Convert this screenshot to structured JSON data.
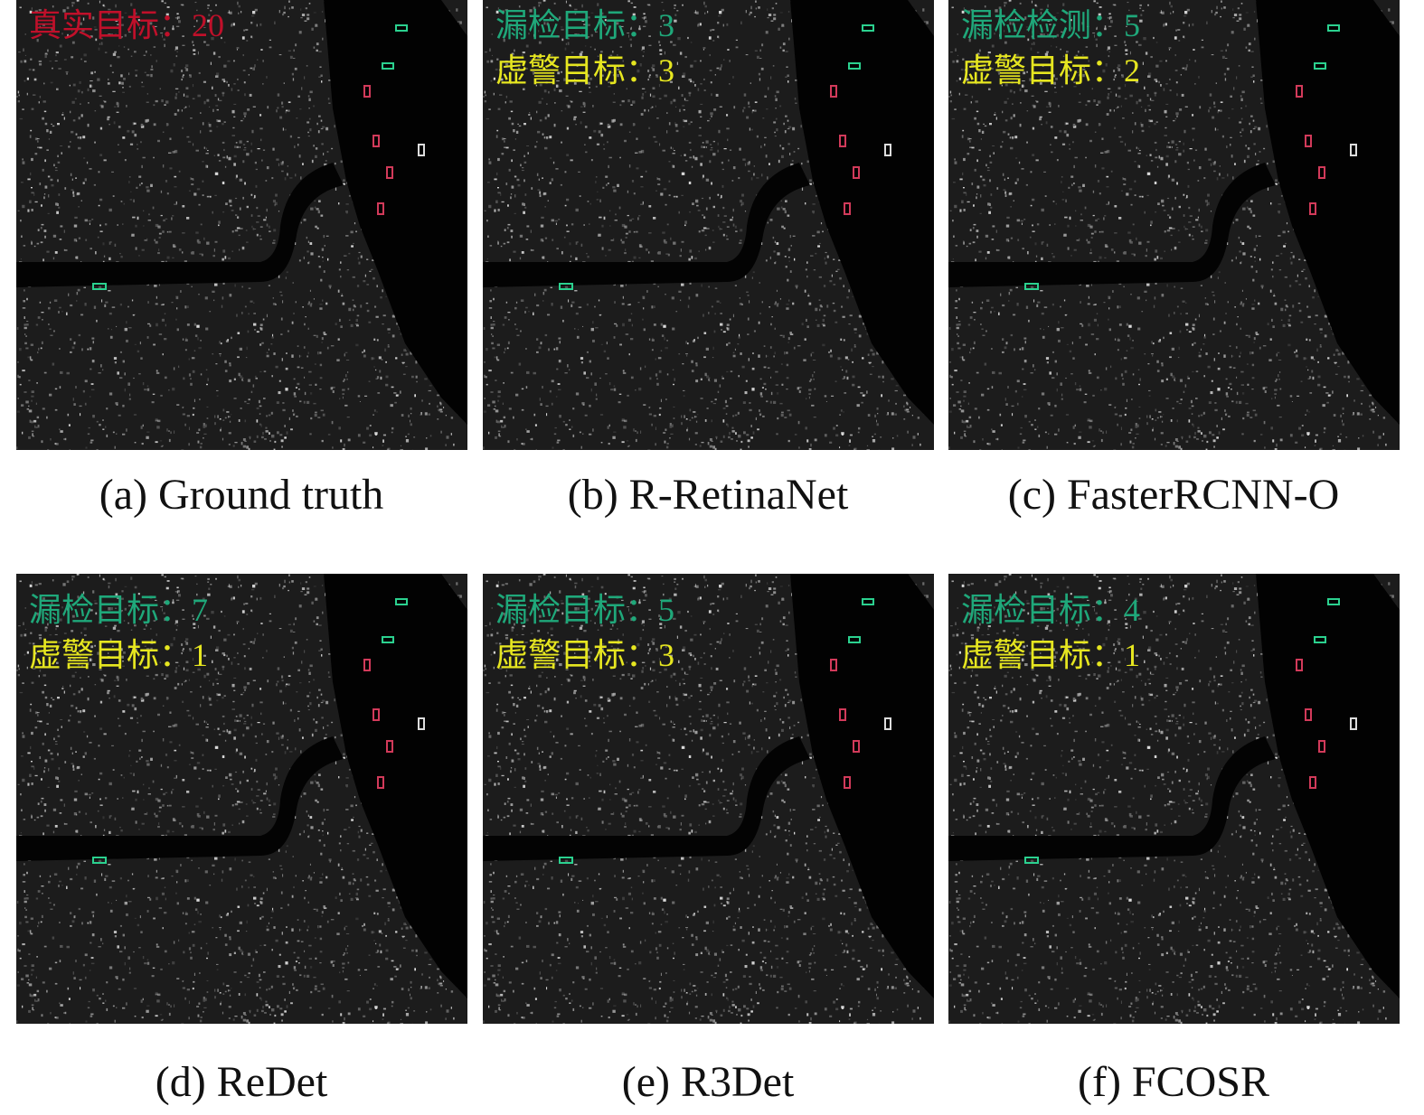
{
  "panels": [
    {
      "caption": "(a) Ground truth",
      "lines": [
        {
          "text": "真实目标：20",
          "color": "#c0102a"
        }
      ]
    },
    {
      "caption": "(b) R-RetinaNet",
      "lines": [
        {
          "text": "漏检目标：3",
          "color": "#1fa87a"
        },
        {
          "text": "虚警目标：3",
          "color": "#e6e620"
        }
      ]
    },
    {
      "caption": "(c) FasterRCNN-O",
      "lines": [
        {
          "text": "漏检检测：5",
          "color": "#1fa87a"
        },
        {
          "text": "虚警目标：2",
          "color": "#e6e620"
        }
      ]
    },
    {
      "caption": "(d) ReDet",
      "lines": [
        {
          "text": "漏检目标：7",
          "color": "#1fa87a"
        },
        {
          "text": "虚警目标：1",
          "color": "#e6e620"
        }
      ]
    },
    {
      "caption": "(e) R3Det",
      "lines": [
        {
          "text": "漏检目标：5",
          "color": "#1fa87a"
        },
        {
          "text": "虚警目标：3",
          "color": "#e6e620"
        }
      ]
    },
    {
      "caption": "(f) FCOSR",
      "lines": [
        {
          "text": "漏检目标：4",
          "color": "#1fa87a"
        },
        {
          "text": "虚警目标：1",
          "color": "#e6e620"
        }
      ]
    }
  ]
}
